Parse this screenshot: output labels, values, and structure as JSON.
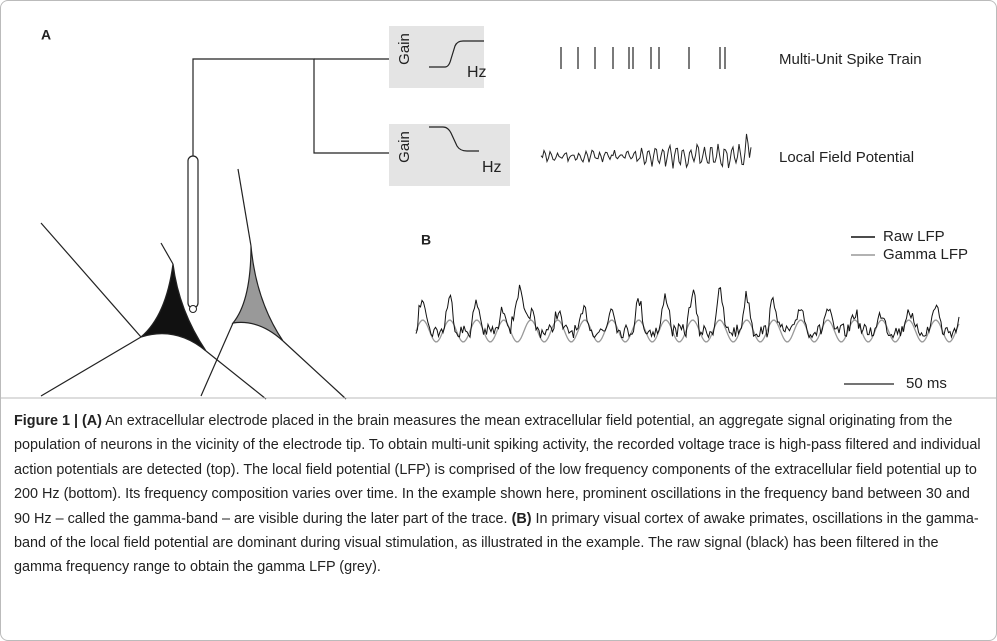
{
  "figure": {
    "panel_a": {
      "label": "A",
      "filters": [
        {
          "y_label": "Gain",
          "x_label": "Hz"
        },
        {
          "y_label": "Gain",
          "x_label": "Hz"
        }
      ],
      "outputs": [
        "Multi-Unit Spike Train",
        "Local Field Potential"
      ]
    },
    "panel_b": {
      "label": "B",
      "legend": [
        "Raw LFP",
        "Gamma LFP"
      ],
      "scale_bar": "50 ms"
    }
  },
  "caption": {
    "title": "Figure 1 | (A)",
    "text_a": "An extracellular electrode placed in the brain measures the mean extracellular field potential, an aggregate signal originating from the population of neurons in the vicinity of the electrode tip. To obtain multi-unit spiking activity, the recorded voltage trace is high-pass filtered and individual action potentials are detected (top). The local field potential (LFP) is comprised of the low frequency components of the extracellular field potential up to 200 Hz (bottom). Its frequency composition varies over time. In the example shown here, prominent oscillations in the frequency band between 30 and 90 Hz – called the gamma-band – are visible during the later part of the trace.",
    "label_b": "(B)",
    "text_b": "In primary visual cortex of awake primates, oscillations in the gamma-band of the local field potential are dominant during visual stimulation, as illustrated in the example. The raw signal (black) has been filtered in the gamma frequency range to obtain the gamma LFP (grey)."
  }
}
